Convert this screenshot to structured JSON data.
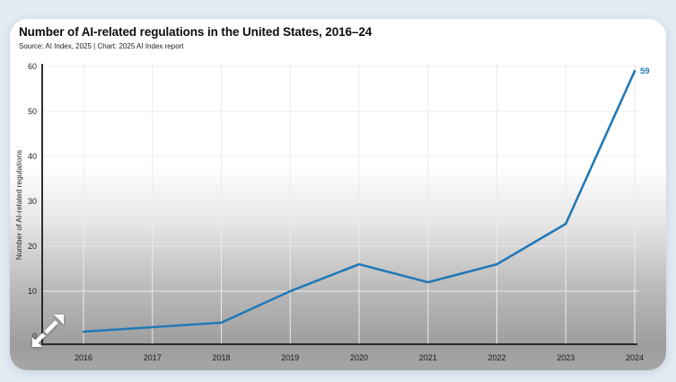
{
  "window": {
    "background_color": "#e3ebf3"
  },
  "card": {
    "background_top_color": "#ffffff",
    "background_bottom_color": "#a6a6a6"
  },
  "chart_data": {
    "type": "line",
    "title": "Number of AI-related regulations in the United States, 2016–24",
    "subtitle": "Source: AI Index, 2025 | Chart: 2025 AI Index report",
    "xlabel": "",
    "ylabel": "Number of AI-related regulations",
    "categories": [
      "2016",
      "2017",
      "2018",
      "2019",
      "2020",
      "2021",
      "2022",
      "2023",
      "2024"
    ],
    "values": [
      1,
      2,
      3,
      10,
      16,
      12,
      16,
      25,
      59
    ],
    "ylim": [
      0,
      60
    ],
    "yticks": [
      0,
      10,
      20,
      30,
      40,
      50,
      60
    ],
    "grid": true,
    "legend_position": "none",
    "line_color": "#2379b7",
    "gridline_color": "#ebebeb",
    "axis_color": "#1a1a1a",
    "end_label": {
      "text": "59",
      "color": "#2379b7"
    }
  },
  "icons": {
    "expand": {
      "semantic": "expand-arrows-icon",
      "color": "#ffffff"
    }
  }
}
